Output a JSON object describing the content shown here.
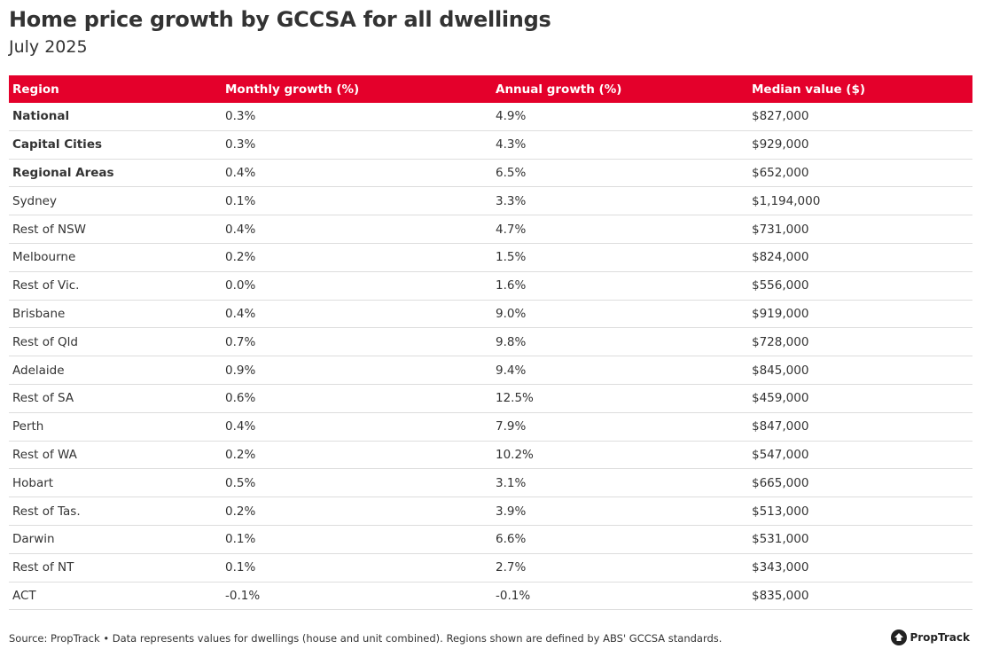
{
  "title": "Home price growth by GCCSA for all dwellings",
  "subtitle": "July 2025",
  "source": "Source: PropTrack • Data represents values for dwellings (house and unit combined). Regions shown are defined by ABS' GCCSA standards.",
  "logo": "PropTrack",
  "colors": {
    "header": "#e4002b"
  },
  "chart_data": {
    "type": "table",
    "columns": [
      "Region",
      "Monthly growth (%)",
      "Annual growth (%)",
      "Median value ($)"
    ],
    "rows": [
      {
        "cells": [
          "National",
          "0.3%",
          "4.9%",
          "$827,000"
        ],
        "bold": true
      },
      {
        "cells": [
          "Capital Cities",
          "0.3%",
          "4.3%",
          "$929,000"
        ],
        "bold": true
      },
      {
        "cells": [
          "Regional Areas",
          "0.4%",
          "6.5%",
          "$652,000"
        ],
        "bold": true
      },
      {
        "cells": [
          "Sydney",
          "0.1%",
          "3.3%",
          "$1,194,000"
        ]
      },
      {
        "cells": [
          "Rest of NSW",
          "0.4%",
          "4.7%",
          "$731,000"
        ]
      },
      {
        "cells": [
          "Melbourne",
          "0.2%",
          "1.5%",
          "$824,000"
        ]
      },
      {
        "cells": [
          "Rest of Vic.",
          "0.0%",
          "1.6%",
          "$556,000"
        ]
      },
      {
        "cells": [
          "Brisbane",
          "0.4%",
          "9.0%",
          "$919,000"
        ]
      },
      {
        "cells": [
          "Rest of Qld",
          "0.7%",
          "9.8%",
          "$728,000"
        ]
      },
      {
        "cells": [
          "Adelaide",
          "0.9%",
          "9.4%",
          "$845,000"
        ]
      },
      {
        "cells": [
          "Rest of SA",
          "0.6%",
          "12.5%",
          "$459,000"
        ]
      },
      {
        "cells": [
          "Perth",
          "0.4%",
          "7.9%",
          "$847,000"
        ]
      },
      {
        "cells": [
          "Rest of WA",
          "0.2%",
          "10.2%",
          "$547,000"
        ]
      },
      {
        "cells": [
          "Hobart",
          "0.5%",
          "3.1%",
          "$665,000"
        ]
      },
      {
        "cells": [
          "Rest of Tas.",
          "0.2%",
          "3.9%",
          "$513,000"
        ]
      },
      {
        "cells": [
          "Darwin",
          "0.1%",
          "6.6%",
          "$531,000"
        ]
      },
      {
        "cells": [
          "Rest of NT",
          "0.1%",
          "2.7%",
          "$343,000"
        ]
      },
      {
        "cells": [
          "ACT",
          "-0.1%",
          "-0.1%",
          "$835,000"
        ]
      }
    ]
  }
}
